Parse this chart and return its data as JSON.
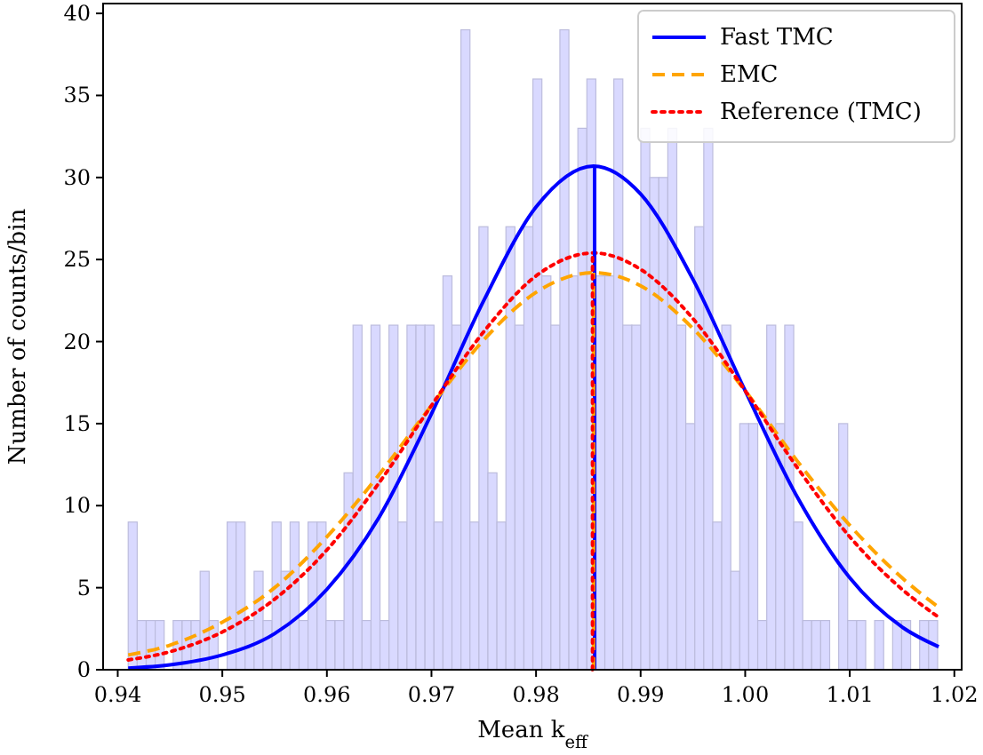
{
  "chart_data": {
    "type": "histogram",
    "xlabel": "Mean k$_{eff}$",
    "ylabel": "Number of counts/bin",
    "bins": [
      0.941,
      0.94186,
      0.94272,
      0.94358,
      0.94444,
      0.9453,
      0.94616,
      0.94702,
      0.94788,
      0.94874,
      0.9496,
      0.95046,
      0.95132,
      0.95218,
      0.95304,
      0.9539,
      0.95476,
      0.95562,
      0.95648,
      0.95734,
      0.9582,
      0.95906,
      0.95992,
      0.96078,
      0.96164,
      0.9625,
      0.96336,
      0.96422,
      0.96508,
      0.96594,
      0.9668,
      0.96766,
      0.96852,
      0.96938,
      0.97024,
      0.9711,
      0.97196,
      0.97282,
      0.97368,
      0.97454,
      0.9754,
      0.97626,
      0.97712,
      0.97798,
      0.97884,
      0.9797,
      0.98056,
      0.98142,
      0.98228,
      0.98314,
      0.984,
      0.98486,
      0.98572,
      0.98658,
      0.98744,
      0.9883,
      0.98916,
      0.99002,
      0.99088,
      0.99174,
      0.9926,
      0.99346,
      0.99432,
      0.99518,
      0.99604,
      0.9969,
      0.99776,
      0.99862,
      0.99948,
      1.00034,
      1.0012,
      1.00206,
      1.00292,
      1.00378,
      1.00464,
      1.0055,
      1.00636,
      1.00722,
      1.00808,
      1.00894,
      1.0098,
      1.01066,
      1.01152,
      1.01238,
      1.01324,
      1.0141,
      1.01496,
      1.01582,
      1.01668,
      1.01754,
      1.0184
    ],
    "values": [
      9,
      3,
      3,
      3,
      0,
      3,
      3,
      3,
      6,
      3,
      0,
      9,
      9,
      3,
      6,
      3,
      9,
      6,
      9,
      3,
      9,
      9,
      3,
      3,
      12,
      21,
      3,
      21,
      3,
      21,
      9,
      21,
      21,
      21,
      9,
      24,
      21,
      39,
      9,
      27,
      12,
      9,
      27,
      21,
      27,
      36,
      24,
      21,
      39,
      24,
      33,
      36,
      24,
      24,
      36,
      21,
      21,
      33,
      30,
      30,
      33,
      21,
      15,
      27,
      33,
      9,
      21,
      6,
      15,
      15,
      3,
      21,
      15,
      21,
      9,
      3,
      3,
      3,
      0,
      15,
      3,
      3,
      0,
      3,
      0,
      3,
      3,
      0,
      3,
      3
    ],
    "color": "#d9d9ff",
    "series": [
      {
        "type": "line",
        "name": "Fast TMC",
        "color": "#0000ff",
        "line_style": "solid",
        "x": [
          0.941,
          0.945,
          0.95,
          0.955,
          0.96,
          0.965,
          0.97,
          0.975,
          0.98,
          0.9855,
          0.99,
          0.995,
          1.0,
          1.005,
          1.01,
          1.015,
          1.0185
        ],
        "values": [
          0.1,
          0.3,
          0.9,
          2.2,
          4.9,
          9.3,
          15.6,
          22.5,
          28.2,
          30.7,
          29.0,
          23.8,
          17.0,
          10.5,
          5.6,
          2.6,
          1.4
        ]
      },
      {
        "type": "line",
        "name": "EMC",
        "color": "#ffa500",
        "line_style": "dashed",
        "x": [
          0.941,
          0.945,
          0.95,
          0.955,
          0.96,
          0.965,
          0.97,
          0.975,
          0.98,
          0.9855,
          0.99,
          0.995,
          1.0,
          1.005,
          1.01,
          1.015,
          1.0185
        ],
        "values": [
          0.9,
          1.5,
          2.9,
          5.0,
          8.1,
          11.9,
          16.1,
          20.1,
          23.0,
          24.2,
          23.4,
          20.8,
          17.0,
          12.7,
          8.8,
          5.6,
          3.8
        ]
      },
      {
        "type": "line",
        "name": "Reference (TMC)",
        "color": "#ff0000",
        "line_style": "dotted",
        "x": [
          0.941,
          0.945,
          0.95,
          0.955,
          0.96,
          0.965,
          0.97,
          0.975,
          0.98,
          0.9855,
          0.99,
          0.995,
          1.0,
          1.005,
          1.01,
          1.015,
          1.0185
        ],
        "values": [
          0.6,
          1.1,
          2.3,
          4.3,
          7.3,
          11.4,
          16.1,
          20.6,
          24.0,
          25.4,
          24.4,
          21.4,
          17.0,
          12.3,
          8.1,
          4.9,
          3.2
        ]
      }
    ],
    "ref_lines": [
      {
        "axis": "x",
        "value": 0.9856,
        "color": "#0000ff",
        "line_style": "solid"
      },
      {
        "axis": "x",
        "value": 0.9855,
        "color": "#ffa500",
        "line_style": "dashed"
      },
      {
        "axis": "x",
        "value": 0.9854,
        "color": "#ff0000",
        "line_style": "dotted"
      }
    ],
    "xlim": [
      0.9386,
      1.0207
    ],
    "ylim": [
      0,
      40.6
    ],
    "xticks": [
      {
        "value": 0.94,
        "label": "0.94"
      },
      {
        "value": 0.95,
        "label": "0.95"
      },
      {
        "value": 0.96,
        "label": "0.96"
      },
      {
        "value": 0.97,
        "label": "0.97"
      },
      {
        "value": 0.98,
        "label": "0.98"
      },
      {
        "value": 0.99,
        "label": "0.99"
      },
      {
        "value": 1.0,
        "label": "1.00"
      },
      {
        "value": 1.01,
        "label": "1.01"
      },
      {
        "value": 1.02,
        "label": "1.02"
      }
    ],
    "yticks": [
      0,
      5,
      10,
      15,
      20,
      25,
      30,
      35,
      40
    ],
    "grid": false,
    "legend": "top right"
  }
}
